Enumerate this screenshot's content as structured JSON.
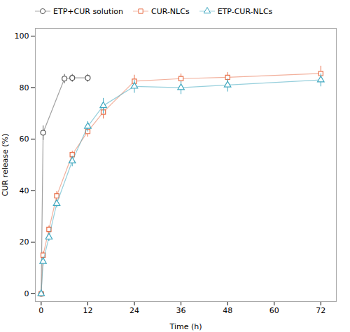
{
  "chart_data": {
    "type": "line",
    "xlabel": "Time (h)",
    "ylabel": "CUR release (%)",
    "xlim": [
      -1.5,
      76
    ],
    "ylim": [
      -3,
      103
    ],
    "xticks": [
      0,
      12,
      24,
      36,
      48,
      60,
      72
    ],
    "yticks": [
      0,
      20,
      40,
      60,
      80,
      100
    ],
    "legend": "upper left",
    "series": [
      {
        "name": "ETP+CUR solution",
        "color": "#555555",
        "marker": "circle",
        "x": [
          0,
          0.5,
          6,
          8,
          12
        ],
        "values": [
          0,
          62.5,
          83.5,
          83.8,
          83.8
        ],
        "yerr": [
          0,
          2.8,
          1.8,
          1.5,
          1.5
        ]
      },
      {
        "name": "CUR-NLCs",
        "color": "#e8704a",
        "marker": "square",
        "x": [
          0,
          0.5,
          2,
          4,
          8,
          12,
          16,
          24,
          36,
          48,
          72
        ],
        "values": [
          0,
          15.0,
          25.0,
          38.0,
          54.0,
          63.0,
          70.5,
          82.5,
          83.5,
          84.0,
          85.5
        ],
        "yerr": [
          0,
          1.5,
          1.5,
          1.8,
          1.5,
          2.0,
          2.5,
          2.5,
          2.0,
          2.0,
          3.0
        ]
      },
      {
        "name": "ETP-CUR-NLCs",
        "color": "#40a8c0",
        "marker": "triangle",
        "x": [
          0,
          0.5,
          2,
          4,
          8,
          12,
          16,
          24,
          36,
          48,
          72
        ],
        "values": [
          0,
          12.5,
          22.0,
          35.0,
          51.5,
          65.0,
          73.0,
          80.5,
          80.0,
          81.0,
          83.0
        ],
        "yerr": [
          0,
          1.5,
          1.5,
          1.5,
          2.0,
          2.0,
          3.0,
          2.5,
          2.5,
          2.5,
          2.5
        ]
      }
    ]
  }
}
